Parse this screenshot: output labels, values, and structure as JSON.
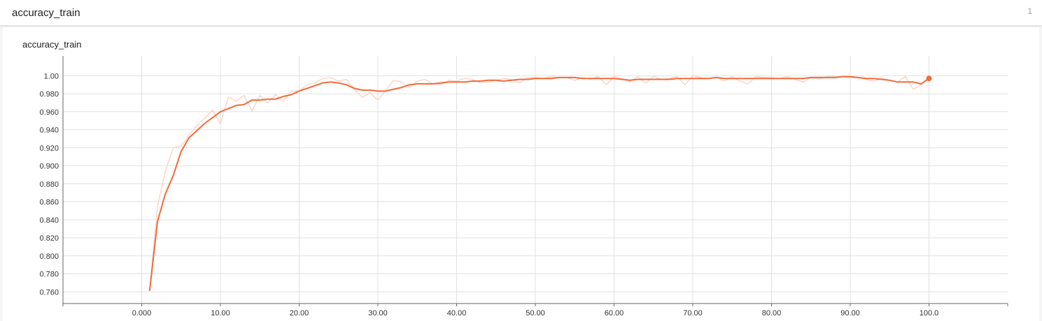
{
  "header": {
    "title": "accuracy_train",
    "count": "1"
  },
  "card": {
    "title": "accuracy_train"
  },
  "colors": {
    "line": "#f26b3a",
    "raw_line": "#fbd6c8",
    "grid": "#e0e0e0",
    "axis": "#666666"
  },
  "chart_data": {
    "type": "line",
    "title": "accuracy_train",
    "xlabel": "",
    "ylabel": "",
    "xlim": [
      -10,
      110
    ],
    "ylim": [
      0.747,
      1.022
    ],
    "x_ticks": [
      0,
      10,
      20,
      30,
      40,
      50,
      60,
      70,
      80,
      90,
      100
    ],
    "x_tick_labels": [
      "0.000",
      "10.00",
      "20.00",
      "30.00",
      "40.00",
      "50.00",
      "60.00",
      "70.00",
      "80.00",
      "90.00",
      "100.0"
    ],
    "y_ticks": [
      0.76,
      0.78,
      0.8,
      0.82,
      0.84,
      0.86,
      0.88,
      0.9,
      0.92,
      0.94,
      0.96,
      0.98,
      1.0
    ],
    "y_tick_labels": [
      "0.760",
      "0.780",
      "0.800",
      "0.820",
      "0.840",
      "0.860",
      "0.880",
      "0.900",
      "0.920",
      "0.940",
      "0.960",
      "0.980",
      "1.00"
    ],
    "grid": true,
    "series": [
      {
        "style": "smoothed",
        "x": [
          1,
          2,
          3,
          4,
          5,
          6,
          8,
          10,
          12,
          13,
          14,
          15,
          16,
          17,
          18,
          19,
          20,
          22,
          23,
          24,
          25,
          26,
          27,
          28,
          29,
          30,
          31,
          32,
          33,
          34,
          35,
          36,
          37,
          38,
          39,
          40,
          41,
          42,
          43,
          44,
          45,
          46,
          47,
          48,
          49,
          50,
          51,
          52,
          53,
          54,
          55,
          56,
          57,
          58,
          59,
          60,
          61,
          62,
          63,
          64,
          65,
          66,
          67,
          68,
          69,
          70,
          71,
          72,
          73,
          74,
          75,
          76,
          77,
          78,
          79,
          80,
          81,
          82,
          83,
          84,
          85,
          86,
          87,
          88,
          89,
          90,
          91,
          92,
          93,
          94,
          95,
          96,
          97,
          98,
          99,
          100
        ],
        "values": [
          0.761,
          0.838,
          0.869,
          0.889,
          0.916,
          0.931,
          0.947,
          0.96,
          0.967,
          0.968,
          0.973,
          0.973,
          0.974,
          0.974,
          0.977,
          0.979,
          0.983,
          0.989,
          0.992,
          0.993,
          0.992,
          0.99,
          0.986,
          0.984,
          0.984,
          0.983,
          0.983,
          0.985,
          0.987,
          0.99,
          0.991,
          0.991,
          0.991,
          0.992,
          0.993,
          0.993,
          0.993,
          0.994,
          0.994,
          0.995,
          0.995,
          0.994,
          0.995,
          0.996,
          0.996,
          0.997,
          0.997,
          0.997,
          0.998,
          0.998,
          0.998,
          0.997,
          0.997,
          0.997,
          0.997,
          0.997,
          0.996,
          0.995,
          0.996,
          0.996,
          0.996,
          0.996,
          0.996,
          0.997,
          0.997,
          0.997,
          0.997,
          0.997,
          0.998,
          0.997,
          0.997,
          0.997,
          0.997,
          0.997,
          0.997,
          0.997,
          0.997,
          0.997,
          0.997,
          0.997,
          0.998,
          0.998,
          0.998,
          0.998,
          0.999,
          0.999,
          0.998,
          0.997,
          0.997,
          0.996,
          0.995,
          0.993,
          0.993,
          0.993,
          0.991,
          0.997
        ]
      },
      {
        "style": "raw",
        "x": [
          1,
          2,
          3,
          4,
          5,
          6,
          7,
          8,
          9,
          10,
          11,
          12,
          13,
          14,
          15,
          16,
          17,
          18,
          19,
          20,
          21,
          22,
          23,
          24,
          25,
          26,
          27,
          28,
          29,
          30,
          31,
          32,
          33,
          34,
          35,
          36,
          37,
          38,
          39,
          40,
          41,
          42,
          43,
          44,
          45,
          46,
          47,
          48,
          49,
          50,
          51,
          52,
          53,
          54,
          55,
          56,
          57,
          58,
          59,
          60,
          61,
          62,
          63,
          64,
          65,
          66,
          67,
          68,
          69,
          70,
          71,
          72,
          73,
          74,
          75,
          76,
          77,
          78,
          79,
          80,
          81,
          82,
          83,
          84,
          85,
          86,
          87,
          88,
          89,
          90,
          91,
          92,
          93,
          94,
          95,
          96,
          97,
          98,
          99,
          100
        ],
        "values": [
          0.761,
          0.855,
          0.894,
          0.92,
          0.922,
          0.934,
          0.945,
          0.953,
          0.962,
          0.947,
          0.976,
          0.972,
          0.978,
          0.961,
          0.978,
          0.97,
          0.979,
          0.972,
          0.983,
          0.983,
          0.99,
          0.992,
          0.997,
          0.998,
          0.994,
          0.996,
          0.985,
          0.976,
          0.981,
          0.973,
          0.984,
          0.995,
          0.993,
          0.987,
          0.994,
          0.996,
          0.991,
          0.99,
          0.995,
          0.994,
          0.997,
          0.996,
          0.992,
          0.993,
          0.995,
          0.997,
          0.996,
          0.992,
          0.998,
          0.998,
          0.997,
          0.999,
          0.998,
          0.998,
          0.995,
          0.998,
          0.996,
          0.999,
          0.99,
          0.999,
          0.997,
          0.993,
          0.999,
          0.992,
          0.999,
          0.996,
          0.997,
          0.999,
          0.99,
          1.0,
          0.998,
          0.997,
          0.998,
          0.994,
          0.999,
          0.994,
          0.991,
          0.999,
          0.998,
          0.998,
          0.997,
          0.999,
          0.996,
          0.993,
          0.998,
          0.996,
          0.999,
          0.999,
          0.999,
          0.998,
          0.998,
          0.996,
          0.994,
          0.997,
          0.995,
          0.993,
          0.999,
          0.985,
          0.99,
          0.998
        ]
      }
    ]
  }
}
